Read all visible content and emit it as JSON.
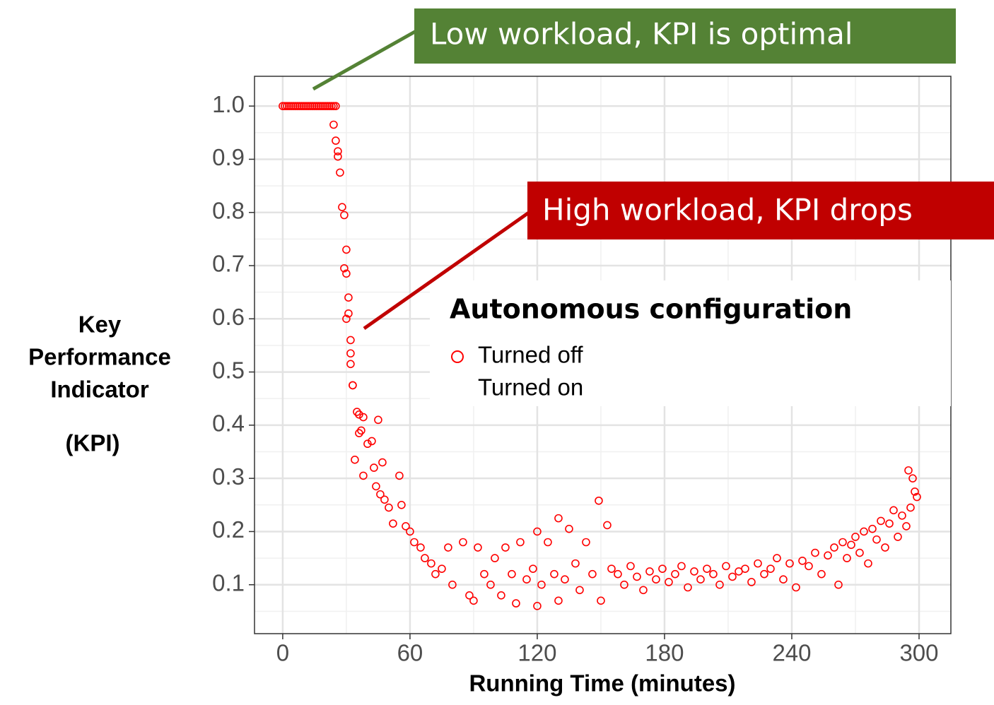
{
  "chart_data": {
    "type": "scatter",
    "xlabel": "Running Time (minutes)",
    "ylabel_lines": [
      "Key",
      "Performance",
      "Indicator",
      "(KPI)"
    ],
    "xlim": [
      -13.3,
      315
    ],
    "ylim": [
      0.008,
      1.056
    ],
    "xticks": [
      0,
      60,
      120,
      180,
      240,
      300
    ],
    "yticks": [
      {
        "value": 0.1,
        "label": "0.1"
      },
      {
        "value": 0.2,
        "label": "0.2"
      },
      {
        "value": 0.3,
        "label": "0.3"
      },
      {
        "value": 0.4,
        "label": "0.4"
      },
      {
        "value": 0.5,
        "label": "0.5"
      },
      {
        "value": 0.6,
        "label": "0.6"
      },
      {
        "value": 0.7,
        "label": "0.7"
      },
      {
        "value": 0.8,
        "label": "0.8"
      },
      {
        "value": 0.9,
        "label": "0.9"
      },
      {
        "value": 1,
        "label": "1.0"
      }
    ],
    "xminorticks": [
      30,
      90,
      150,
      210,
      270
    ],
    "yminorticks": [
      0.05,
      0.15,
      0.25,
      0.35,
      0.45,
      0.55,
      0.65,
      0.75,
      0.85,
      0.95
    ],
    "grid": true,
    "legend_title": "Autonomous configuration",
    "series": [
      {
        "name": "Turned off",
        "color": "#ff0000",
        "x": [
          0,
          1,
          2,
          3,
          4,
          5,
          6,
          7,
          8,
          9,
          10,
          11,
          12,
          13,
          14,
          15,
          16,
          17,
          18,
          19,
          20,
          21,
          22,
          23,
          24,
          25,
          24,
          25,
          26,
          26,
          27,
          28,
          29,
          30,
          29,
          30,
          31,
          31,
          30,
          32,
          32,
          32,
          33,
          33,
          35,
          36,
          38,
          37,
          36,
          40,
          34,
          38,
          42,
          45,
          43,
          47,
          44,
          46,
          48,
          50,
          52,
          55,
          56,
          58,
          60,
          62,
          65,
          67,
          70,
          72,
          75,
          78,
          80,
          85,
          88,
          90,
          92,
          95,
          98,
          100,
          103,
          105,
          108,
          110,
          112,
          115,
          118,
          120,
          120,
          122,
          125,
          128,
          130,
          130,
          133,
          135,
          138,
          140,
          143,
          146,
          149,
          150,
          153,
          155,
          158,
          161,
          164,
          167,
          170,
          173,
          176,
          179,
          182,
          185,
          188,
          191,
          194,
          197,
          200,
          203,
          206,
          209,
          212,
          215,
          218,
          221,
          224,
          227,
          230,
          233,
          236,
          239,
          242,
          245,
          248,
          251,
          254,
          257,
          260,
          262,
          264,
          266,
          268,
          270,
          272,
          274,
          276,
          278,
          280,
          282,
          284,
          286,
          288,
          290,
          292,
          294,
          295,
          296,
          297,
          298,
          299
        ],
        "y": [
          1,
          1,
          1,
          1,
          1,
          1,
          1,
          1,
          1,
          1,
          1,
          1,
          1,
          1,
          1,
          1,
          1,
          1,
          1,
          1,
          1,
          1,
          1,
          1,
          1,
          1,
          0.965,
          0.935,
          0.915,
          0.905,
          0.875,
          0.81,
          0.795,
          0.73,
          0.695,
          0.685,
          0.64,
          0.61,
          0.6,
          0.56,
          0.535,
          0.515,
          0.475,
          0.475,
          0.425,
          0.42,
          0.415,
          0.39,
          0.385,
          0.365,
          0.335,
          0.305,
          0.37,
          0.41,
          0.32,
          0.33,
          0.285,
          0.27,
          0.26,
          0.245,
          0.215,
          0.305,
          0.25,
          0.21,
          0.2,
          0.18,
          0.17,
          0.15,
          0.14,
          0.12,
          0.13,
          0.17,
          0.1,
          0.18,
          0.08,
          0.07,
          0.17,
          0.12,
          0.1,
          0.15,
          0.08,
          0.17,
          0.12,
          0.065,
          0.18,
          0.11,
          0.13,
          0.2,
          0.06,
          0.1,
          0.18,
          0.12,
          0.225,
          0.07,
          0.11,
          0.205,
          0.14,
          0.09,
          0.18,
          0.12,
          0.258,
          0.07,
          0.212,
          0.13,
          0.12,
          0.1,
          0.135,
          0.115,
          0.09,
          0.125,
          0.11,
          0.13,
          0.105,
          0.12,
          0.135,
          0.095,
          0.125,
          0.11,
          0.13,
          0.12,
          0.1,
          0.135,
          0.115,
          0.125,
          0.13,
          0.105,
          0.14,
          0.12,
          0.13,
          0.15,
          0.11,
          0.14,
          0.095,
          0.145,
          0.135,
          0.16,
          0.12,
          0.155,
          0.17,
          0.1,
          0.18,
          0.15,
          0.175,
          0.19,
          0.16,
          0.2,
          0.14,
          0.205,
          0.185,
          0.22,
          0.17,
          0.215,
          0.24,
          0.19,
          0.23,
          0.21,
          0.315,
          0.245,
          0.3,
          0.275,
          0.265
        ]
      },
      {
        "name": "Turned on",
        "x": [],
        "y": []
      }
    ],
    "annotations": [
      {
        "text": "Low workload, KPI is optimal",
        "color": "#548235"
      },
      {
        "text": "High workload, KPI drops",
        "color": "#c00000"
      }
    ]
  }
}
